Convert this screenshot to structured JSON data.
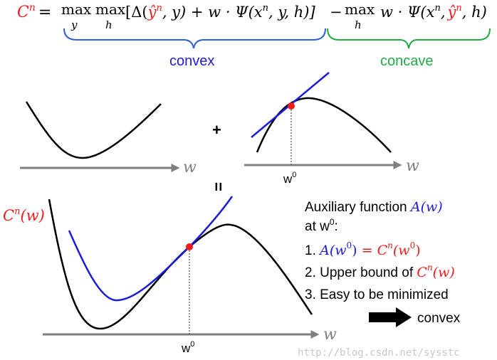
{
  "equation": {
    "lhs_symbol": "C",
    "lhs_superscript": "n",
    "eq_sign": "=",
    "max1": "max",
    "max1_sub": "y",
    "max2": "max",
    "max2_sub": "h",
    "term1_open": "[Δ(",
    "yhat": "ŷ",
    "yhat_sup": "n",
    "term1_mid": ", y) + w · Ψ(x",
    "term1_xsup": "n",
    "term1_close": ", y, h)]",
    "minus": "−",
    "max3": "max",
    "max3_sub": "h",
    "term2_open": "w · Ψ(x",
    "term2_xsup": "n",
    "term2_sep": ",",
    "term2_yhat": "ŷ",
    "term2_yhat_sup": "n",
    "term2_close": ", h)"
  },
  "labels": {
    "convex": "convex",
    "concave": "concave",
    "plus": "+",
    "equals": "=",
    "axis_w": "w",
    "w0_base": "w",
    "w0_sup": "0",
    "cn_symbol": "C",
    "cn_sup": "n",
    "cn_arg": "(w)"
  },
  "text_block": {
    "line1_prefix": "Auxiliary function ",
    "line1_func": "A(w)",
    "line2_prefix": "at w",
    "line2_sup": "0",
    "line2_suffix": ":",
    "line3_num": "1. ",
    "line3_a": "A(w",
    "line3_a_sup": "0",
    "line3_a_close": ")",
    "line3_eq": " = ",
    "line3_c": "C",
    "line3_c_sup": "n",
    "line3_c_arg_open": "(w",
    "line3_c_arg_sup": "0",
    "line3_c_arg_close": ")",
    "line4_prefix": "2. Upper bound of ",
    "line4_c": "C",
    "line4_c_sup": "n",
    "line4_c_arg": "(w)",
    "line5": "3. Easy to be minimized",
    "arrow_label": "convex"
  },
  "watermark": "http://blog.csdn.net/sysstc",
  "colors": {
    "red": "#ee1c1c",
    "blue": "#1c1cdd",
    "green": "#22aa44",
    "brace_blue": "#2f5fd0",
    "axis_gray": "#7f7f7f",
    "black": "#000000",
    "watermark": "#c8c8c8"
  }
}
